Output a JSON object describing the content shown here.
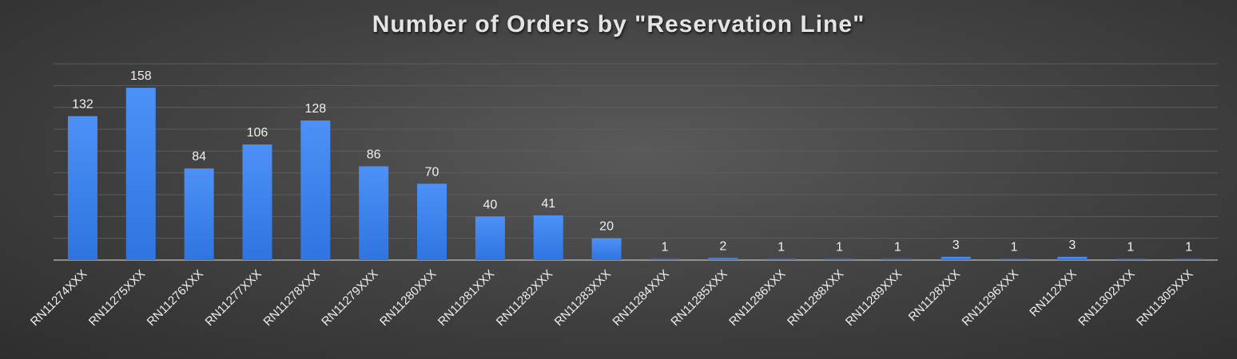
{
  "chart_data": {
    "type": "bar",
    "title": "Number of Orders by \"Reservation Line\"",
    "categories": [
      "RN11274XXX",
      "RN11275XXX",
      "RN11276XXX",
      "RN11277XXX",
      "RN11278XXX",
      "RN11279XXX",
      "RN11280XXX",
      "RN11281XXX",
      "RN11282XXX",
      "RN11283XXX",
      "RN11284XXX",
      "RN11285XXX",
      "RN11286XXX",
      "RN11288XXX",
      "RN11289XXX",
      "RN1128XXX",
      "RN11296XXX",
      "RN112XXX",
      "RN11302XXX",
      "RN11305XXX"
    ],
    "values": [
      132,
      158,
      84,
      106,
      128,
      86,
      70,
      40,
      41,
      20,
      1,
      2,
      1,
      1,
      1,
      3,
      1,
      3,
      1,
      1
    ],
    "ylim": [
      0,
      180
    ],
    "grid": true,
    "data_labels": true,
    "colors": {
      "bar_top": "#4d90f7",
      "bar_bottom": "#2f74e0",
      "gridline": "#5c5c5c",
      "baseline": "#bfbfbf",
      "text": "#f0f0f0"
    }
  }
}
